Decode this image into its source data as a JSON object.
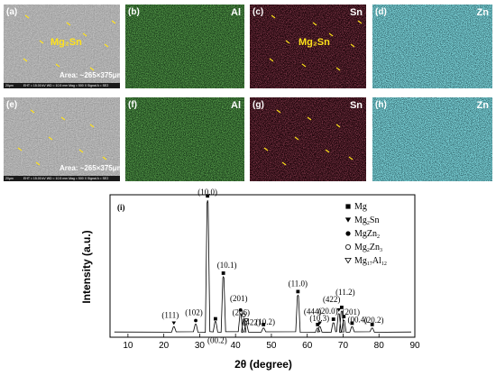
{
  "panels": [
    {
      "label": "(a)",
      "element": "",
      "mg2sn": "Mg₂Sn",
      "area": "Area: ~265×375μm²",
      "kind": "sem"
    },
    {
      "label": "(b)",
      "element": "Al",
      "kind": "al"
    },
    {
      "label": "(c)",
      "element": "Sn",
      "mg2sn": "Mg₂Sn",
      "kind": "sn"
    },
    {
      "label": "(d)",
      "element": "Zn",
      "kind": "zn"
    },
    {
      "label": "(e)",
      "element": "",
      "area": "Area: ~265×375μm²",
      "kind": "sem"
    },
    {
      "label": "(f)",
      "element": "Al",
      "kind": "al"
    },
    {
      "label": "(g)",
      "element": "Sn",
      "kind": "sn"
    },
    {
      "label": "(h)",
      "element": "Zn",
      "kind": "zn"
    }
  ],
  "sem_footer": {
    "scale": "20μm",
    "info": "EHT = 15.00 kV    WD = 10.5 mm    Mag = 500 X    Signal A = SE2"
  },
  "colors": {
    "al": "#3f9a2e",
    "sn": "#b22a3a",
    "zn": "#39c4cc",
    "sem": "#5a5a5a",
    "arrow": "#ffe21a"
  },
  "chart_data": {
    "type": "line",
    "panel_label": "(i)",
    "xlabel": "2θ (degree)",
    "ylabel": "Intensity (a.u.)",
    "xlim": [
      5,
      90
    ],
    "xticks": [
      10,
      20,
      30,
      40,
      50,
      60,
      70,
      80,
      90
    ],
    "ylim": [
      0,
      100
    ],
    "y_tick_labels": false,
    "legend_position": "top-right",
    "legend": [
      {
        "symbol": "filled-square",
        "text": "Mg",
        "sub": ""
      },
      {
        "symbol": "filled-triangle-down",
        "text": "Mg",
        "sub": "2",
        "rest": "Sn"
      },
      {
        "symbol": "filled-circle",
        "text": "MgZn",
        "sub": "2",
        "rest": ""
      },
      {
        "symbol": "open-circle",
        "text": "Mg",
        "sub": "2",
        "rest": "Zn",
        "sub2": "3"
      },
      {
        "symbol": "open-triangle-down",
        "text": "Mg",
        "sub": "17",
        "rest": "Al",
        "sub2": "12"
      }
    ],
    "peaks": [
      {
        "x": 22.8,
        "y": 4,
        "label": "(111)",
        "symbol": "filled-triangle-down"
      },
      {
        "x": 28.9,
        "y": 6,
        "label": "(102)",
        "symbol": "filled-circle"
      },
      {
        "x": 32.2,
        "y": 100,
        "label": "(10.0)",
        "symbol": "filled-square"
      },
      {
        "x": 34.4,
        "y": 8,
        "label": "(00.2)",
        "symbol": "filled-square"
      },
      {
        "x": 36.6,
        "y": 42,
        "label": "(10.1)",
        "symbol": "filled-square"
      },
      {
        "x": 41.4,
        "y": 14,
        "label": "(201)",
        "symbol": "filled-circle"
      },
      {
        "x": 42.3,
        "y": 10,
        "label": "(206)",
        "symbol": "open-circle"
      },
      {
        "x": 43.0,
        "y": 6,
        "label": "(422)",
        "symbol": "open-triangle-down"
      },
      {
        "x": 47.8,
        "y": 3,
        "label": "(10.2)",
        "symbol": "filled-square"
      },
      {
        "x": 57.4,
        "y": 28,
        "label": "(11.0)",
        "symbol": "filled-square"
      },
      {
        "x": 62.9,
        "y": 3,
        "label": "(10.3)",
        "symbol": "filled-square"
      },
      {
        "x": 63.5,
        "y": 4,
        "label": "(444)",
        "symbol": "filled-triangle-down"
      },
      {
        "x": 67.3,
        "y": 7,
        "label": "(20.0)",
        "symbol": "filled-square"
      },
      {
        "x": 68.8,
        "y": 14,
        "label": "(422)",
        "symbol": "filled-triangle-down"
      },
      {
        "x": 69.6,
        "y": 16,
        "label": "(11.2)",
        "symbol": "filled-square"
      },
      {
        "x": 70.2,
        "y": 9,
        "label": "(201)",
        "symbol": "filled-square"
      },
      {
        "x": 72.5,
        "y": 4,
        "label": "(00.4)",
        "symbol": "filled-square"
      },
      {
        "x": 78.1,
        "y": 3,
        "label": "(20.2)",
        "symbol": "filled-square"
      }
    ]
  }
}
